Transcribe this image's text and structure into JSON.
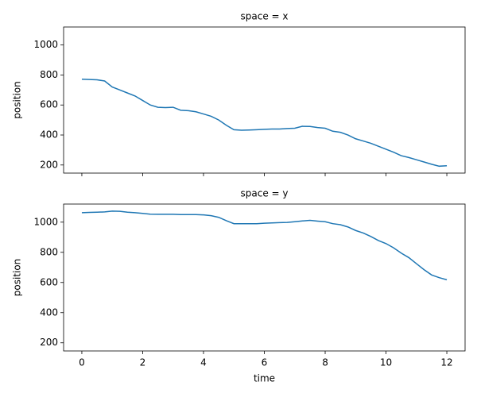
{
  "chart_data": [
    {
      "type": "line",
      "title": "space = x",
      "ylabel": "position",
      "x": [
        0,
        0.25,
        0.5,
        0.75,
        1,
        1.25,
        1.5,
        1.75,
        2,
        2.25,
        2.5,
        2.75,
        3,
        3.25,
        3.5,
        3.75,
        4,
        4.25,
        4.5,
        4.75,
        5,
        5.25,
        5.5,
        5.75,
        6,
        6.25,
        6.5,
        6.75,
        7,
        7.25,
        7.5,
        7.75,
        8,
        8.25,
        8.5,
        8.75,
        9,
        9.25,
        9.5,
        9.75,
        10,
        10.25,
        10.5,
        10.75,
        11,
        11.25,
        11.5,
        11.75,
        12
      ],
      "series": [
        {
          "color": "#1f77b4",
          "values": [
            772,
            770,
            768,
            760,
            720,
            700,
            680,
            660,
            630,
            600,
            585,
            583,
            585,
            565,
            562,
            555,
            540,
            525,
            500,
            465,
            435,
            432,
            433,
            435,
            438,
            440,
            440,
            443,
            445,
            458,
            457,
            450,
            445,
            425,
            418,
            400,
            375,
            360,
            345,
            325,
            305,
            285,
            262,
            250,
            235,
            220,
            205,
            192,
            195
          ]
        }
      ],
      "xlim": [
        -0.6,
        12.6
      ],
      "xticks": [
        0,
        2,
        4,
        6,
        8,
        10,
        12
      ],
      "ylim": [
        146,
        1120
      ],
      "yticks": [
        200,
        400,
        600,
        800,
        1000
      ]
    },
    {
      "type": "line",
      "title": "space = y",
      "ylabel": "position",
      "xlabel": "time",
      "x": [
        0,
        0.25,
        0.5,
        0.75,
        1,
        1.25,
        1.5,
        1.75,
        2,
        2.25,
        2.5,
        2.75,
        3,
        3.25,
        3.5,
        3.75,
        4,
        4.25,
        4.5,
        4.75,
        5,
        5.25,
        5.5,
        5.75,
        6,
        6.25,
        6.5,
        6.75,
        7,
        7.25,
        7.5,
        7.75,
        8,
        8.25,
        8.5,
        8.75,
        9,
        9.25,
        9.5,
        9.75,
        10,
        10.25,
        10.5,
        10.75,
        11,
        11.25,
        11.5,
        11.75,
        12
      ],
      "series": [
        {
          "color": "#1f77b4",
          "values": [
            1063,
            1065,
            1066,
            1068,
            1073,
            1072,
            1066,
            1063,
            1058,
            1053,
            1052,
            1052,
            1052,
            1050,
            1050,
            1050,
            1048,
            1043,
            1032,
            1010,
            990,
            990,
            990,
            990,
            993,
            995,
            997,
            998,
            1003,
            1008,
            1012,
            1007,
            1003,
            990,
            983,
            968,
            945,
            928,
            905,
            878,
            858,
            830,
            795,
            765,
            725,
            685,
            650,
            632,
            618
          ]
        }
      ],
      "xlim": [
        -0.6,
        12.6
      ],
      "xticks": [
        0,
        2,
        4,
        6,
        8,
        10,
        12
      ],
      "xticklabels": true,
      "ylim": [
        146,
        1120
      ],
      "yticks": [
        200,
        400,
        600,
        800,
        1000
      ]
    }
  ]
}
